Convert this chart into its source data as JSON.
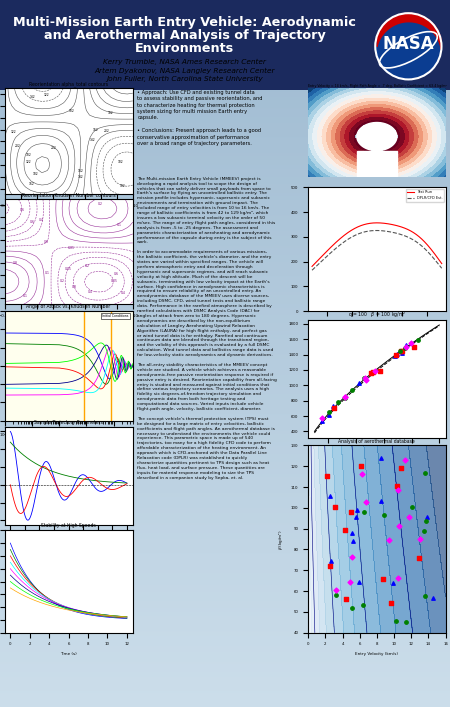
{
  "title_line1": "Multi-Mission Earth Entry Vehicle: Aerodynamic",
  "title_line2": "and Aerothermal Analysis of Trajectory",
  "title_line3": "Environments",
  "approach_text": "• Approach: Use CFD and existing tunnel data\nto assess stability and passive reorientation, and\nto characterize heating for thermal protection\nsystem sizing for multi mission Earth entry\ncapsule.\n\n• Conclusions: Present approach leads to a good\nconservative approximation of performance\nover a broad range of trajectory parameters.",
  "body_text": "The Multi-mission Earth Entry Vehicle (MMEEV) project is\ndeveloping a rapid analysis tool to scope the design of\nvehicles that can safely deliver small payloads from space to\nEarth's surface by flying an uncontrolled ballistic entry. The\nmission profile includes hypersonic, supersonic and subsonic\nenvironments and termination with ground impact. The\nincluded range of entry velocities is from 10 to 16 km/s. The\nrange of ballistic coefficients is from 42 to 129 kg/m², which\ninsures a low subsonic terminal velocity on the order of 50\nm/sec. The range of entry flight path angles, considered in this\nanalysis is from -5 to -25 degrees. The assessment and\nparametric characterization of aeroheating and aerodynamic\nperformance of the capsule during entry is the subject of this\nwork.\n\nIn order to accommodate requirements of various missions,\nthe ballistic coefficient, the vehicle's diameter, and the entry\nstates are varied within specified ranges. The vehicle will\nperform atmospheric entry and deceleration through\nhypersonic and supersonic regimes, and will reach subsonic\nvelocity at high altitude. Much of the descent will be\nsubsonic, terminating with low velocity impact at the Earth's\nsurface. High confidence in aerodynamic characteristics is\nrequired to ensure reliability of an uncontrolled entry. An\naerodynamics database of the MMEEV uses diverse sources,\nincluding DSMC, CFD, wind tunnel tests and ballistic range\ndata. Performance in the rarefied atmosphere is described by\nrarefied calculations with DSMC Analysis Code (DAC) for\nangles of attack from zero to 180 degrees. Hypersonic\naerodynamics are described by the non-equilibrium\ncalculation of Langley Aeroheating Upwind Relaxation\nAlgorithm (LAURA) for high flight enthalpy, and perfect gas\nor wind tunnel data is for enthalpy. Rarefied and continuum\ncontinuum data are blended through the transitional region,\nand the validity of this approach is evaluated by a full DSMC\ncalculation. Wind tunnel data and ballistics range data is used\nfor low-velocity static aerodynamics and dynamic derivatives.\n\nThe all-entry stability characteristics of the MMEEV concept\nvehicle are studied. A vehicle which achieves a reasonable\naerodynamic-free passive reorientation response is required if\npassive entry is desired. Reorientation capability from all-facing\nentry is studied and measured against initial conditions that\ndefine various trajectory scenarios. The analysis uses a high\nfidelity six degrees-of-freedom trajectory simulation and\naerodynamic data from both heritage testing and\ncomputational data sources. Varied inputs include vehicle\nflight-path angle, velocity, ballistic coefficient, diameter.\n\nThe concept vehicle's thermal protection system (TPS) must\nbe designed for a large matrix of entry velocities, ballistic\ncoefficients and flight path angles. An aerothermal database is\nnecessary to understand the environments the vehicle could\nexperience. This parametric space is made up of 540\ntrajectories, too many for a high fidelity CFD code to perform\naffordable characterization of the heating environment. An\napproach which is CFD-anchored with the Data Parallel Line\nRelaxation code (DPLR) was established to quickly\ncharacterize quantities pertinent to TPS design such as heat\nflux, heat load, and surface pressure. These quantities are\ninputs for material response modeling to size the TPS\ndescribed in a companion study by Sepka, et. al.",
  "poster_bg": "#b0c8dc"
}
